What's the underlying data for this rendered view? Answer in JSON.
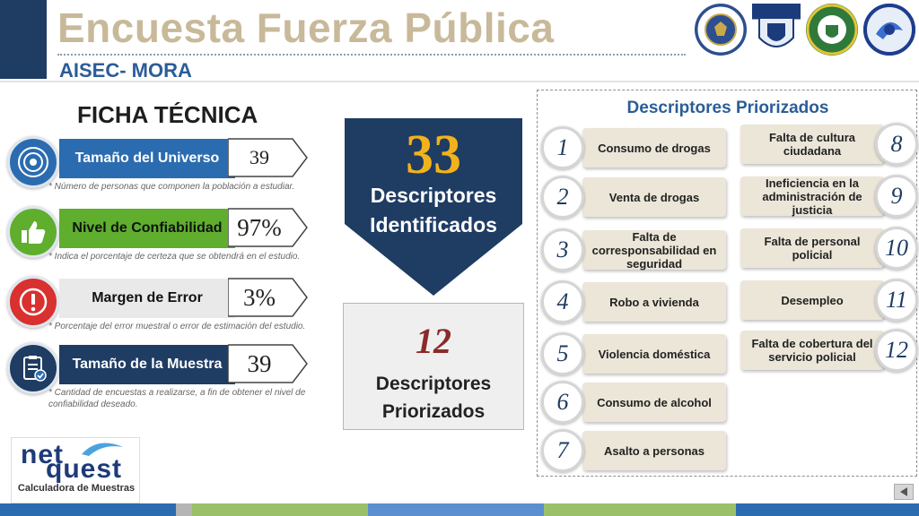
{
  "header": {
    "title": "Encuesta Fuerza Pública",
    "subtitle": "AISEC- MORA",
    "logos": [
      "UNITED STATES OF AMERICA EMBASSY",
      "FUERZA PUBLICA",
      "POLICÍA",
      "AISEC"
    ]
  },
  "ficha": {
    "title": "FICHA TÉCNICA",
    "rows": [
      {
        "label": "Tamaño del Universo",
        "value": "39",
        "note": "* Número de personas que componen la población a estudiar.",
        "icon": "target-icon",
        "label_bg": "#2b6cb0",
        "label_color": "#ffffff"
      },
      {
        "label": "Nivel de Confiabilidad",
        "value": "97%",
        "note": "* Indica el porcentaje de certeza que se obtendrá en el estudio.",
        "icon": "thumbs-up-icon",
        "label_bg": "#5fae2e",
        "label_color": "#111111"
      },
      {
        "label": "Margen de Error",
        "value": "3%",
        "note": "* Porcentaje del error muestral o error de estimación del estudio.",
        "icon": "alert-icon",
        "label_bg": "#e9e9e9",
        "label_color": "#111111"
      },
      {
        "label": "Tamaño de la Muestra",
        "value": "39",
        "note": "* Cantidad de encuestas a realizarse, a fin de obtener el nivel de confiabilidad deseado.",
        "icon": "clipboard-check-icon",
        "label_bg": "#1f3c63",
        "label_color": "#ffffff"
      }
    ]
  },
  "identified": {
    "number": "33",
    "line1": "Descriptores",
    "line2": "Identificados"
  },
  "prioritized": {
    "number": "12",
    "line1": "Descriptores",
    "line2": "Priorizados"
  },
  "panel": {
    "title": "Descriptores Priorizados",
    "items": [
      {
        "n": "1",
        "text": "Consumo de drogas"
      },
      {
        "n": "2",
        "text": "Venta de drogas"
      },
      {
        "n": "3",
        "text": "Falta de corresponsabilidad en seguridad"
      },
      {
        "n": "4",
        "text": "Robo a vivienda"
      },
      {
        "n": "5",
        "text": "Violencia doméstica"
      },
      {
        "n": "6",
        "text": "Consumo de alcohol"
      },
      {
        "n": "7",
        "text": "Asalto a personas"
      },
      {
        "n": "8",
        "text": "Falta de cultura ciudadana"
      },
      {
        "n": "9",
        "text": "Ineficiencia en la administración de justicia"
      },
      {
        "n": "10",
        "text": "Falta de personal policial"
      },
      {
        "n": "11",
        "text": "Desempleo"
      },
      {
        "n": "12",
        "text": "Falta de cobertura del servicio policial"
      }
    ]
  },
  "netquest": {
    "line1": "net",
    "line2": "quest",
    "caption": "Calculadora de Muestras"
  },
  "colors": {
    "navy": "#1f3c63",
    "gold": "#f2b21c",
    "maroon": "#8b2a2a",
    "title_beige": "#c8b99a",
    "accent_blue": "#2b5d97"
  }
}
